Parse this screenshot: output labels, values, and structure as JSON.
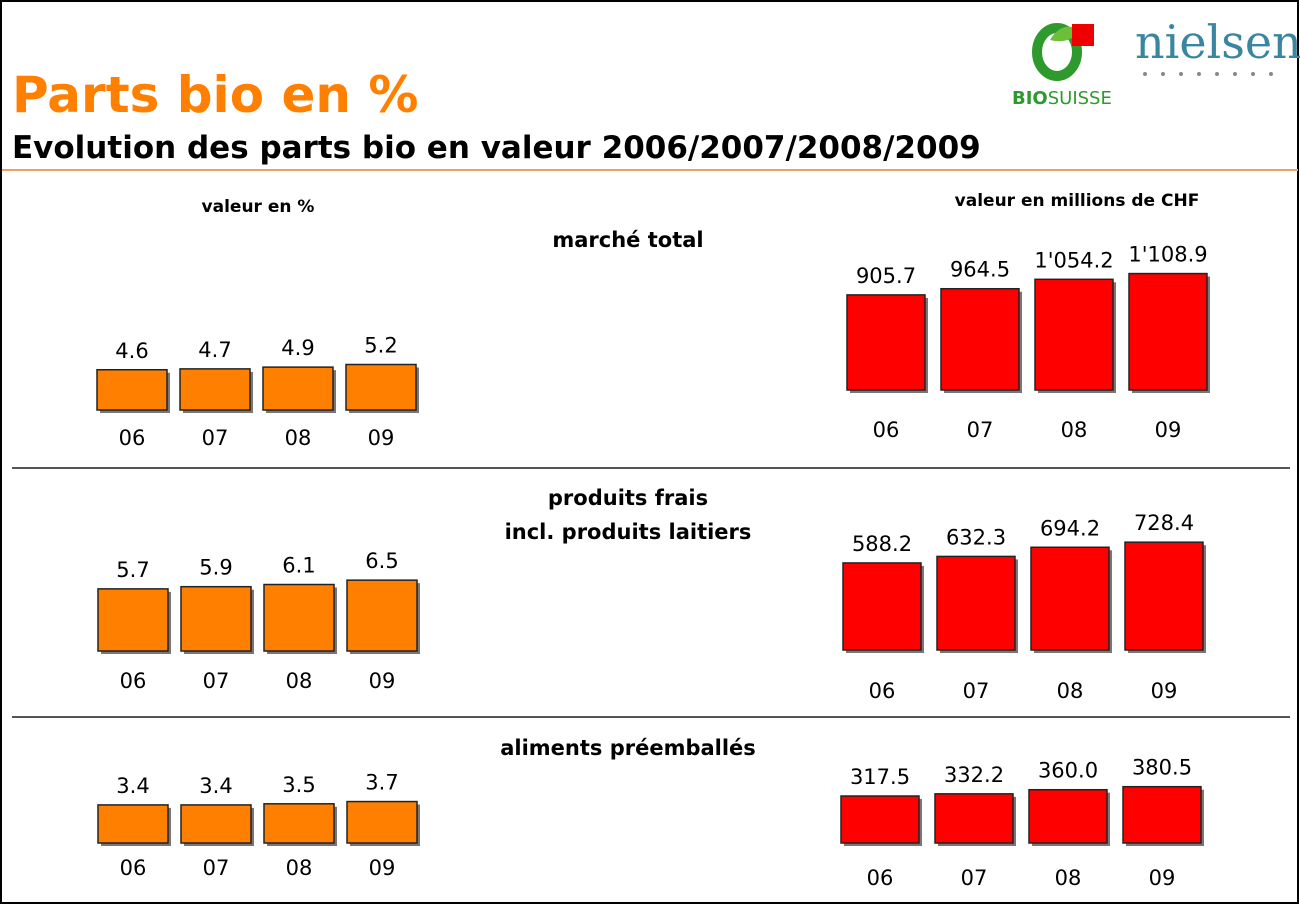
{
  "title": "Parts bio en %",
  "subtitle": "Evolution des parts bio en valeur 2006/2007/2008/2009",
  "left_heading": "valeur en %",
  "right_heading": "valeur en millions de CHF",
  "logos": {
    "bio": "BIO",
    "suisse": "SUISSE",
    "nielsen": "nielsen"
  },
  "section_titles": [
    [
      "marché total"
    ],
    [
      "produits frais",
      "incl. produits laitiers"
    ],
    [
      "aliments préemballés"
    ]
  ],
  "chart_data": [
    {
      "type": "bar",
      "categories": [
        "06",
        "07",
        "08",
        "09"
      ],
      "values": [
        4.6,
        4.7,
        4.9,
        5.2
      ],
      "color": "#ff8000"
    },
    {
      "type": "bar",
      "categories": [
        "06",
        "07",
        "08",
        "09"
      ],
      "values": [
        905.7,
        964.5,
        1054.2,
        1108.9
      ],
      "value_labels": [
        "905.7",
        "964.5",
        "1'054.2",
        "1'108.9"
      ],
      "color": "#ff0000"
    },
    {
      "type": "bar",
      "categories": [
        "06",
        "07",
        "08",
        "09"
      ],
      "values": [
        5.7,
        5.9,
        6.1,
        6.5
      ],
      "color": "#ff8000"
    },
    {
      "type": "bar",
      "categories": [
        "06",
        "07",
        "08",
        "09"
      ],
      "values": [
        588.2,
        632.3,
        694.2,
        728.4
      ],
      "value_labels": [
        "588.2",
        "632.3",
        "694.2",
        "728.4"
      ],
      "color": "#ff0000"
    },
    {
      "type": "bar",
      "categories": [
        "06",
        "07",
        "08",
        "09"
      ],
      "values": [
        3.4,
        3.4,
        3.5,
        3.7
      ],
      "color": "#ff8000"
    },
    {
      "type": "bar",
      "categories": [
        "06",
        "07",
        "08",
        "09"
      ],
      "values": [
        317.5,
        332.2,
        360.0,
        380.5
      ],
      "value_labels": [
        "317.5",
        "332.2",
        "360.0",
        "380.5"
      ],
      "color": "#ff0000"
    }
  ]
}
